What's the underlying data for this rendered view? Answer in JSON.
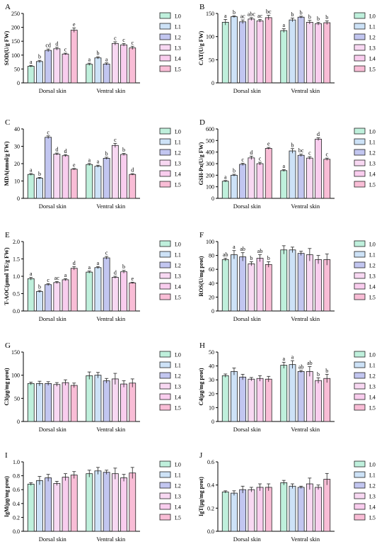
{
  "figure": {
    "colors": [
      "#bff0dc",
      "#cde2f7",
      "#c2c6f0",
      "#f8d8f2",
      "#f9cdee",
      "#f9bdd6"
    ],
    "group_names": [
      "L0",
      "L1",
      "L2",
      "L3",
      "L4",
      "L5"
    ]
  },
  "chart_data": [
    {
      "panel": "A",
      "type": "bar",
      "ylabel": "SOD(U/g FW)",
      "ylim": [
        0,
        250
      ],
      "yticks": [
        0,
        50,
        100,
        150,
        200,
        250
      ],
      "categories": [
        "Dorsal skin",
        "Ventral skin"
      ],
      "series": [
        {
          "name": "L0",
          "values": [
            60,
            67
          ],
          "errors": [
            3,
            4
          ],
          "labels": [
            "a",
            "a"
          ]
        },
        {
          "name": "L1",
          "values": [
            77,
            90
          ],
          "errors": [
            4,
            4
          ],
          "labels": [
            "b",
            "b"
          ]
        },
        {
          "name": "L2",
          "values": [
            117,
            68
          ],
          "errors": [
            5,
            4
          ],
          "labels": [
            "cd",
            "a"
          ]
        },
        {
          "name": "L3",
          "values": [
            123,
            142
          ],
          "errors": [
            5,
            6
          ],
          "labels": [
            "d",
            "c"
          ]
        },
        {
          "name": "L4",
          "values": [
            104,
            137
          ],
          "errors": [
            3,
            5
          ],
          "labels": [
            "c",
            "c"
          ]
        },
        {
          "name": "L5",
          "values": [
            190,
            126
          ],
          "errors": [
            8,
            6
          ],
          "labels": [
            "e",
            "c"
          ]
        }
      ]
    },
    {
      "panel": "B",
      "type": "bar",
      "ylabel": "CAT(U/g FW)",
      "ylim": [
        0,
        150
      ],
      "yticks": [
        0,
        50,
        100,
        150
      ],
      "categories": [
        "Dorsal skin",
        "Ventral skin"
      ],
      "series": [
        {
          "name": "L0",
          "values": [
            131,
            113
          ],
          "errors": [
            6,
            4
          ],
          "labels": [
            "a",
            "a"
          ]
        },
        {
          "name": "L1",
          "values": [
            143,
            136
          ],
          "errors": [
            2,
            4
          ],
          "labels": [
            "b",
            "b"
          ]
        },
        {
          "name": "L2",
          "values": [
            132,
            142
          ],
          "errors": [
            4,
            2
          ],
          "labels": [
            "ac",
            "b"
          ]
        },
        {
          "name": "L3",
          "values": [
            138,
            131
          ],
          "errors": [
            3,
            4
          ],
          "labels": [
            "abc",
            "b"
          ]
        },
        {
          "name": "L4",
          "values": [
            134,
            128
          ],
          "errors": [
            3,
            3
          ],
          "labels": [
            "ac",
            "b"
          ]
        },
        {
          "name": "L5",
          "values": [
            141,
            130
          ],
          "errors": [
            5,
            4
          ],
          "labels": [
            "bc",
            "b"
          ]
        }
      ]
    },
    {
      "panel": "C",
      "type": "bar",
      "ylabel": "MDA(nmol/g FW)",
      "ylim": [
        0,
        40
      ],
      "yticks": [
        0,
        10,
        20,
        30,
        40
      ],
      "categories": [
        "Dorsal skin",
        "Ventral skin"
      ],
      "series": [
        {
          "name": "L0",
          "values": [
            13.8,
            19.5
          ],
          "errors": [
            0.5,
            0.6
          ],
          "labels": [
            "a",
            "a"
          ]
        },
        {
          "name": "L1",
          "values": [
            11.6,
            18.5
          ],
          "errors": [
            0.5,
            0.6
          ],
          "labels": [
            "b",
            "a"
          ]
        },
        {
          "name": "L2",
          "values": [
            35.2,
            23.1
          ],
          "errors": [
            0.8,
            0.6
          ],
          "labels": [
            "c",
            "b"
          ]
        },
        {
          "name": "L3",
          "values": [
            25.5,
            30.5
          ],
          "errors": [
            0.6,
            1.2
          ],
          "labels": [
            "d",
            "c"
          ]
        },
        {
          "name": "L4",
          "values": [
            24.6,
            25.3
          ],
          "errors": [
            0.6,
            0.6
          ],
          "labels": [
            "d",
            "b"
          ]
        },
        {
          "name": "L5",
          "values": [
            16.8,
            13.8
          ],
          "errors": [
            0.4,
            0.4
          ],
          "labels": [
            "e",
            "d"
          ]
        }
      ]
    },
    {
      "panel": "D",
      "type": "bar",
      "ylabel": "GSH-Px(U/g FW)",
      "ylim": [
        0,
        600
      ],
      "yticks": [
        0,
        100,
        200,
        300,
        400,
        500,
        600
      ],
      "categories": [
        "Dorsal skin",
        "Ventral skin"
      ],
      "series": [
        {
          "name": "L0",
          "values": [
            148,
            240
          ],
          "errors": [
            6,
            8
          ],
          "labels": [
            "a",
            "a"
          ]
        },
        {
          "name": "L1",
          "values": [
            200,
            410
          ],
          "errors": [
            8,
            20
          ],
          "labels": [
            "b",
            "b"
          ]
        },
        {
          "name": "L2",
          "values": [
            294,
            372
          ],
          "errors": [
            10,
            10
          ],
          "labels": [
            "c",
            "bc"
          ]
        },
        {
          "name": "L3",
          "values": [
            350,
            348
          ],
          "errors": [
            15,
            12
          ],
          "labels": [
            "d",
            "c"
          ]
        },
        {
          "name": "L4",
          "values": [
            300,
            512
          ],
          "errors": [
            12,
            12
          ],
          "labels": [
            "c",
            "d"
          ]
        },
        {
          "name": "L5",
          "values": [
            432,
            338
          ],
          "errors": [
            8,
            10
          ],
          "labels": [
            "e",
            "c"
          ]
        }
      ]
    },
    {
      "panel": "E",
      "type": "bar",
      "ylabel": "T-AOC(μmol TE/g FW)",
      "ylim": [
        0,
        2.0
      ],
      "yticks": [
        0,
        0.5,
        1.0,
        1.5,
        2.0
      ],
      "categories": [
        "Dorsal skin",
        "Ventral skin"
      ],
      "series": [
        {
          "name": "L0",
          "values": [
            0.93,
            1.12
          ],
          "errors": [
            0.04,
            0.03
          ],
          "labels": [
            "a",
            "a"
          ]
        },
        {
          "name": "L1",
          "values": [
            0.56,
            1.25
          ],
          "errors": [
            0.03,
            0.03
          ],
          "labels": [
            "b",
            "a"
          ]
        },
        {
          "name": "L2",
          "values": [
            0.76,
            1.53
          ],
          "errors": [
            0.03,
            0.04
          ],
          "labels": [
            "c",
            "c"
          ]
        },
        {
          "name": "L3",
          "values": [
            0.82,
            0.97
          ],
          "errors": [
            0.03,
            0.03
          ],
          "labels": [
            "ac",
            "d"
          ]
        },
        {
          "name": "L4",
          "values": [
            0.9,
            1.13
          ],
          "errors": [
            0.03,
            0.04
          ],
          "labels": [
            "a",
            "b"
          ]
        },
        {
          "name": "L5",
          "values": [
            1.23,
            0.81
          ],
          "errors": [
            0.05,
            0.02
          ],
          "labels": [
            "d",
            "e"
          ]
        }
      ]
    },
    {
      "panel": "F",
      "type": "bar",
      "ylabel": "ROS(U/mg prot)",
      "ylim": [
        0,
        100
      ],
      "yticks": [
        0,
        20,
        40,
        60,
        80,
        100
      ],
      "categories": [
        "Dorsal skin",
        "Ventral skin"
      ],
      "series": [
        {
          "name": "L0",
          "values": [
            74,
            88
          ],
          "errors": [
            2,
            6
          ],
          "labels": [
            "ab",
            ""
          ]
        },
        {
          "name": "L1",
          "values": [
            81,
            88
          ],
          "errors": [
            6,
            4
          ],
          "labels": [
            "a",
            ""
          ]
        },
        {
          "name": "L2",
          "values": [
            78,
            83
          ],
          "errors": [
            6,
            3
          ],
          "labels": [
            "ab",
            ""
          ]
        },
        {
          "name": "L3",
          "values": [
            68,
            81
          ],
          "errors": [
            3,
            9
          ],
          "labels": [
            "b",
            ""
          ]
        },
        {
          "name": "L4",
          "values": [
            76,
            74
          ],
          "errors": [
            5,
            6
          ],
          "labels": [
            "ab",
            ""
          ]
        },
        {
          "name": "L5",
          "values": [
            67,
            74
          ],
          "errors": [
            4,
            8
          ],
          "labels": [
            "b",
            ""
          ]
        }
      ]
    },
    {
      "panel": "G",
      "type": "bar",
      "ylabel": "C3(μg/mg prot)",
      "ylim": [
        0,
        150
      ],
      "yticks": [
        0,
        50,
        100,
        150
      ],
      "categories": [
        "Dorsal skin",
        "Ventral skin"
      ],
      "series": [
        {
          "name": "L0",
          "values": [
            82,
            99
          ],
          "errors": [
            3,
            8
          ],
          "labels": [
            "",
            ""
          ]
        },
        {
          "name": "L1",
          "values": [
            82,
            100
          ],
          "errors": [
            5,
            6
          ],
          "labels": [
            "",
            ""
          ]
        },
        {
          "name": "L2",
          "values": [
            82,
            88
          ],
          "errors": [
            4,
            5
          ],
          "labels": [
            "",
            ""
          ]
        },
        {
          "name": "L3",
          "values": [
            80,
            92
          ],
          "errors": [
            4,
            12
          ],
          "labels": [
            "",
            ""
          ]
        },
        {
          "name": "L4",
          "values": [
            84,
            81
          ],
          "errors": [
            6,
            7
          ],
          "labels": [
            "",
            ""
          ]
        },
        {
          "name": "L5",
          "values": [
            78,
            83
          ],
          "errors": [
            5,
            9
          ],
          "labels": [
            "",
            ""
          ]
        }
      ]
    },
    {
      "panel": "H",
      "type": "bar",
      "ylabel": "C4(μg/mg prot)",
      "ylim": [
        0,
        50
      ],
      "yticks": [
        0,
        10,
        20,
        30,
        40,
        50
      ],
      "categories": [
        "Dorsal skin",
        "Ventral skin"
      ],
      "series": [
        {
          "name": "L0",
          "values": [
            33,
            40.5
          ],
          "errors": [
            1.2,
            2.2
          ],
          "labels": [
            "",
            "a"
          ]
        },
        {
          "name": "L1",
          "values": [
            36,
            41
          ],
          "errors": [
            2.5,
            2.8
          ],
          "labels": [
            "",
            "a"
          ]
        },
        {
          "name": "L2",
          "values": [
            32,
            36
          ],
          "errors": [
            2,
            0.8
          ],
          "labels": [
            "",
            "ab"
          ]
        },
        {
          "name": "L3",
          "values": [
            30.5,
            36
          ],
          "errors": [
            1.2,
            3.5
          ],
          "labels": [
            "",
            "ab"
          ]
        },
        {
          "name": "L4",
          "values": [
            31,
            29.5
          ],
          "errors": [
            2,
            2
          ],
          "labels": [
            "",
            "b"
          ]
        },
        {
          "name": "L5",
          "values": [
            30.5,
            31
          ],
          "errors": [
            2,
            3
          ],
          "labels": [
            "",
            "b"
          ]
        }
      ]
    },
    {
      "panel": "I",
      "type": "bar",
      "ylabel": "IgM(μg/mg prot)",
      "ylim": [
        0,
        1.0
      ],
      "yticks": [
        0,
        0.2,
        0.4,
        0.6,
        0.8,
        1.0
      ],
      "categories": [
        "Dorsal skin",
        "Ventral skin"
      ],
      "series": [
        {
          "name": "L0",
          "values": [
            0.68,
            0.83
          ],
          "errors": [
            0.02,
            0.05
          ],
          "labels": [
            "",
            ""
          ]
        },
        {
          "name": "L1",
          "values": [
            0.73,
            0.87
          ],
          "errors": [
            0.06,
            0.05
          ],
          "labels": [
            "",
            ""
          ]
        },
        {
          "name": "L2",
          "values": [
            0.77,
            0.85
          ],
          "errors": [
            0.05,
            0.03
          ],
          "labels": [
            "",
            ""
          ]
        },
        {
          "name": "L3",
          "values": [
            0.69,
            0.83
          ],
          "errors": [
            0.03,
            0.08
          ],
          "labels": [
            "",
            ""
          ]
        },
        {
          "name": "L4",
          "values": [
            0.78,
            0.77
          ],
          "errors": [
            0.05,
            0.05
          ],
          "labels": [
            "",
            ""
          ]
        },
        {
          "name": "L5",
          "values": [
            0.81,
            0.84
          ],
          "errors": [
            0.05,
            0.08
          ],
          "labels": [
            "",
            ""
          ]
        }
      ]
    },
    {
      "panel": "J",
      "type": "bar",
      "ylabel": "IgT(μg/mg prot)",
      "ylim": [
        0,
        0.6
      ],
      "yticks": [
        0,
        0.2,
        0.4,
        0.6
      ],
      "categories": [
        "Dorsal skin",
        "Ventral skin"
      ],
      "series": [
        {
          "name": "L0",
          "values": [
            0.34,
            0.42
          ],
          "errors": [
            0.01,
            0.02
          ],
          "labels": [
            "",
            ""
          ]
        },
        {
          "name": "L1",
          "values": [
            0.33,
            0.39
          ],
          "errors": [
            0.02,
            0.02
          ],
          "labels": [
            "",
            ""
          ]
        },
        {
          "name": "L2",
          "values": [
            0.36,
            0.38
          ],
          "errors": [
            0.03,
            0.01
          ],
          "labels": [
            "",
            ""
          ]
        },
        {
          "name": "L3",
          "values": [
            0.36,
            0.41
          ],
          "errors": [
            0.02,
            0.05
          ],
          "labels": [
            "",
            ""
          ]
        },
        {
          "name": "L4",
          "values": [
            0.38,
            0.38
          ],
          "errors": [
            0.03,
            0.02
          ],
          "labels": [
            "",
            ""
          ]
        },
        {
          "name": "L5",
          "values": [
            0.38,
            0.45
          ],
          "errors": [
            0.03,
            0.05
          ],
          "labels": [
            "",
            ""
          ]
        }
      ]
    }
  ]
}
